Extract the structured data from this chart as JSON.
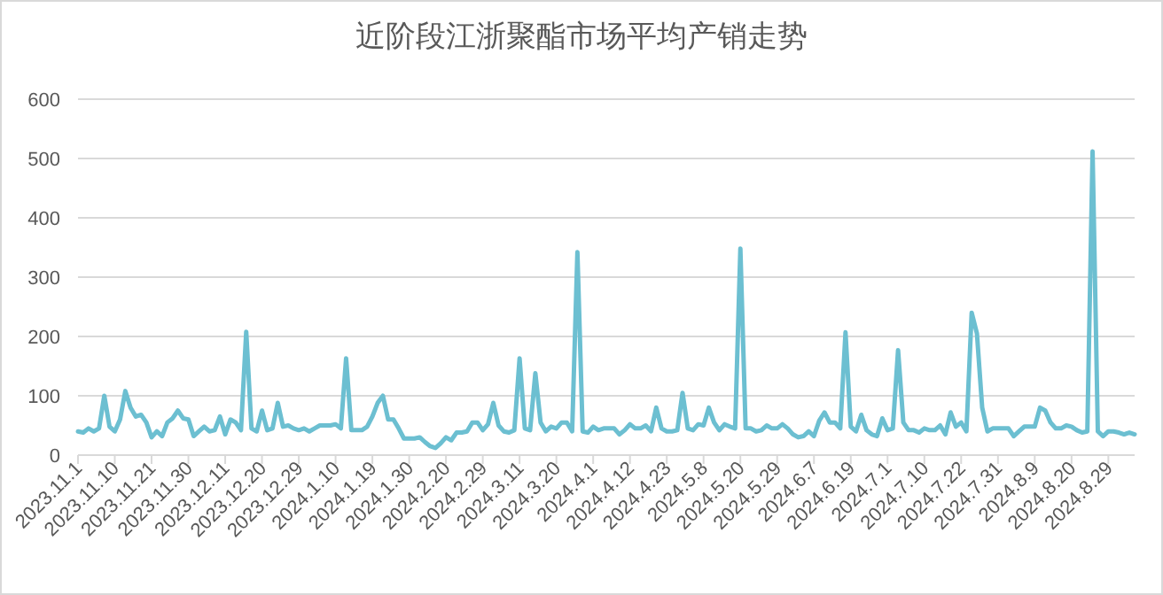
{
  "chart_data": {
    "type": "line",
    "title": "近阶段江浙聚酯市场平均产销走势",
    "categories": [
      "2023.11.1",
      null,
      null,
      null,
      null,
      null,
      null,
      "2023.11.10",
      null,
      null,
      null,
      null,
      null,
      null,
      "2023.11.21",
      null,
      null,
      null,
      null,
      null,
      null,
      "2023.11.30",
      null,
      null,
      null,
      null,
      null,
      null,
      "2023.12.11",
      null,
      null,
      null,
      null,
      null,
      null,
      "2023.12.20",
      null,
      null,
      null,
      null,
      null,
      null,
      "2023.12.29",
      null,
      null,
      null,
      null,
      null,
      null,
      "2024.1.10",
      null,
      null,
      null,
      null,
      null,
      null,
      "2024.1.19",
      null,
      null,
      null,
      null,
      null,
      null,
      "2024.1.30",
      null,
      null,
      null,
      null,
      null,
      null,
      "2024.2.20",
      null,
      null,
      null,
      null,
      null,
      null,
      "2024.2.29",
      null,
      null,
      null,
      null,
      null,
      null,
      "2024.3.11",
      null,
      null,
      null,
      null,
      null,
      null,
      "2024.3.20",
      null,
      null,
      null,
      null,
      null,
      null,
      "2024.4.1",
      null,
      null,
      null,
      null,
      null,
      null,
      "2024.4.12",
      null,
      null,
      null,
      null,
      null,
      null,
      "2024.4.23",
      null,
      null,
      null,
      null,
      null,
      null,
      "2024.5.8",
      null,
      null,
      null,
      null,
      null,
      null,
      "2024.5.20",
      null,
      null,
      null,
      null,
      null,
      null,
      "2024.5.29",
      null,
      null,
      null,
      null,
      null,
      null,
      "2024.6.7",
      null,
      null,
      null,
      null,
      null,
      null,
      "2024.6.19",
      null,
      null,
      null,
      null,
      null,
      null,
      "2024.7.1",
      null,
      null,
      null,
      null,
      null,
      null,
      "2024.7.10",
      null,
      null,
      null,
      null,
      null,
      null,
      "2024.7.22",
      null,
      null,
      null,
      null,
      null,
      null,
      "2024.7.31",
      null,
      null,
      null,
      null,
      null,
      null,
      "2024.8.9",
      null,
      null,
      null,
      null,
      null,
      null,
      "2024.8.20",
      null,
      null,
      null,
      null,
      null,
      null,
      "2024.8.29",
      null,
      null,
      null,
      null,
      null
    ],
    "series": [
      {
        "color": "#6cbfd1",
        "values": [
          40,
          38,
          45,
          40,
          45,
          100,
          48,
          40,
          60,
          108,
          80,
          65,
          68,
          55,
          30,
          40,
          32,
          55,
          62,
          75,
          62,
          60,
          32,
          40,
          48,
          40,
          42,
          65,
          35,
          60,
          55,
          42,
          208,
          45,
          40,
          75,
          42,
          45,
          88,
          48,
          50,
          45,
          42,
          45,
          40,
          45,
          50,
          50,
          50,
          52,
          45,
          163,
          42,
          42,
          42,
          48,
          65,
          88,
          100,
          60,
          60,
          45,
          28,
          28,
          28,
          30,
          22,
          15,
          12,
          20,
          30,
          25,
          38,
          38,
          40,
          55,
          55,
          42,
          52,
          88,
          50,
          40,
          38,
          42,
          163,
          45,
          42,
          138,
          55,
          40,
          48,
          45,
          55,
          55,
          40,
          342,
          40,
          38,
          48,
          42,
          45,
          45,
          45,
          35,
          42,
          52,
          45,
          45,
          50,
          40,
          80,
          45,
          40,
          40,
          42,
          105,
          45,
          42,
          52,
          50,
          80,
          55,
          42,
          52,
          48,
          45,
          348,
          45,
          45,
          40,
          42,
          50,
          45,
          45,
          52,
          45,
          35,
          30,
          32,
          40,
          32,
          58,
          72,
          55,
          55,
          45,
          207,
          48,
          40,
          68,
          42,
          35,
          32,
          62,
          42,
          45,
          177,
          55,
          42,
          42,
          38,
          45,
          42,
          42,
          50,
          35,
          72,
          48,
          55,
          40,
          240,
          205,
          80,
          40,
          45,
          45,
          45,
          45,
          32,
          40,
          48,
          48,
          48,
          80,
          75,
          55,
          45,
          45,
          50,
          48,
          42,
          38,
          40,
          512,
          40,
          32,
          40,
          40,
          38,
          35,
          38,
          35
        ]
      }
    ],
    "ylim": [
      0,
      600
    ],
    "yticks": [
      0,
      100,
      200,
      300,
      400,
      500,
      600
    ],
    "grid": "y"
  }
}
